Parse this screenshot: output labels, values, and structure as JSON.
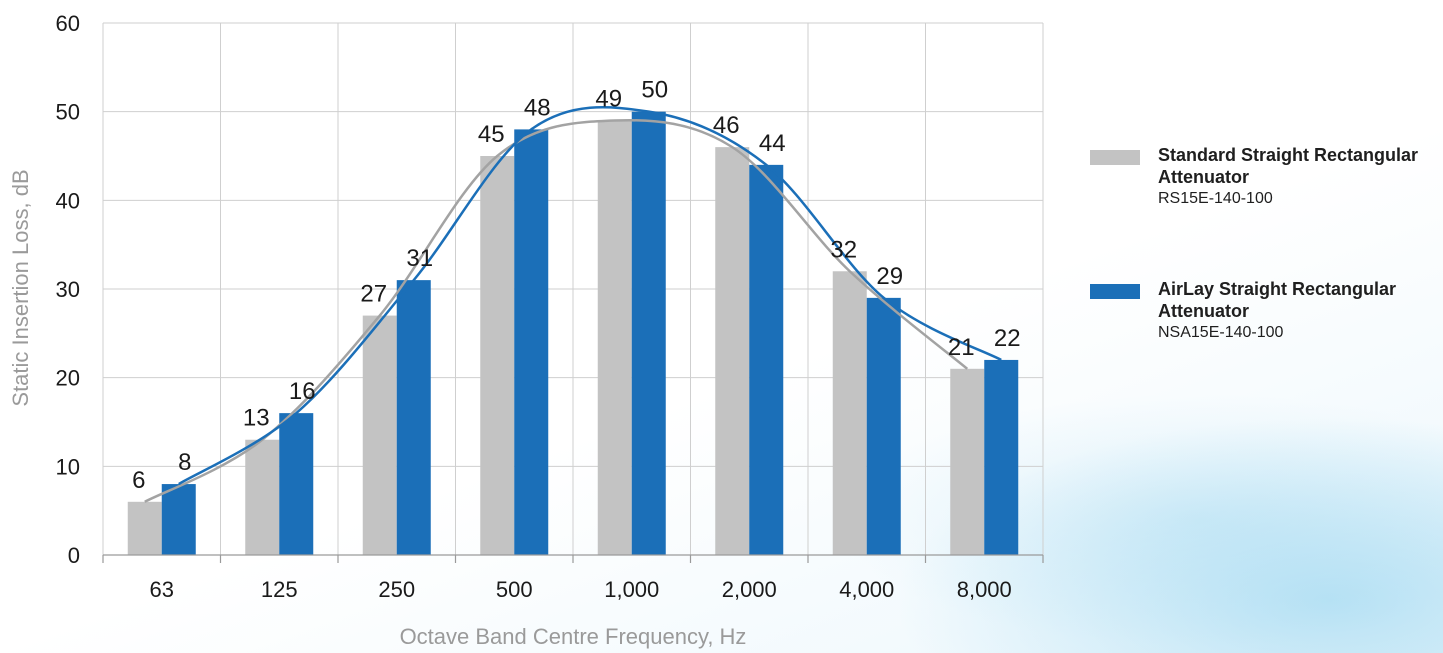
{
  "chart_data": {
    "type": "bar",
    "xlabel": "Octave Band Centre Frequency, Hz",
    "ylabel": "Static Insertion Loss, dB",
    "ylim": [
      0,
      60
    ],
    "yticks": [
      "0",
      "10",
      "20",
      "30",
      "40",
      "50",
      "60"
    ],
    "categories": [
      "63",
      "125",
      "250",
      "500",
      "1,000",
      "2,000",
      "4,000",
      "8,000"
    ],
    "grid": true,
    "legend_position": "right",
    "trend_lines": true,
    "series": [
      {
        "name": "Standard Straight Rectangular Attenuator",
        "model": "RS15E-140-100",
        "color": "#c3c3c3",
        "line_color": "#a3a3a3",
        "values": [
          6,
          13,
          27,
          45,
          49,
          46,
          32,
          21
        ]
      },
      {
        "name": "AirLay Straight Rectangular Attenuator",
        "model": "NSA15E-140-100",
        "color": "#1b6fb8",
        "line_color": "#1b6fb8",
        "values": [
          8,
          16,
          31,
          48,
          50,
          44,
          29,
          22
        ]
      }
    ]
  }
}
